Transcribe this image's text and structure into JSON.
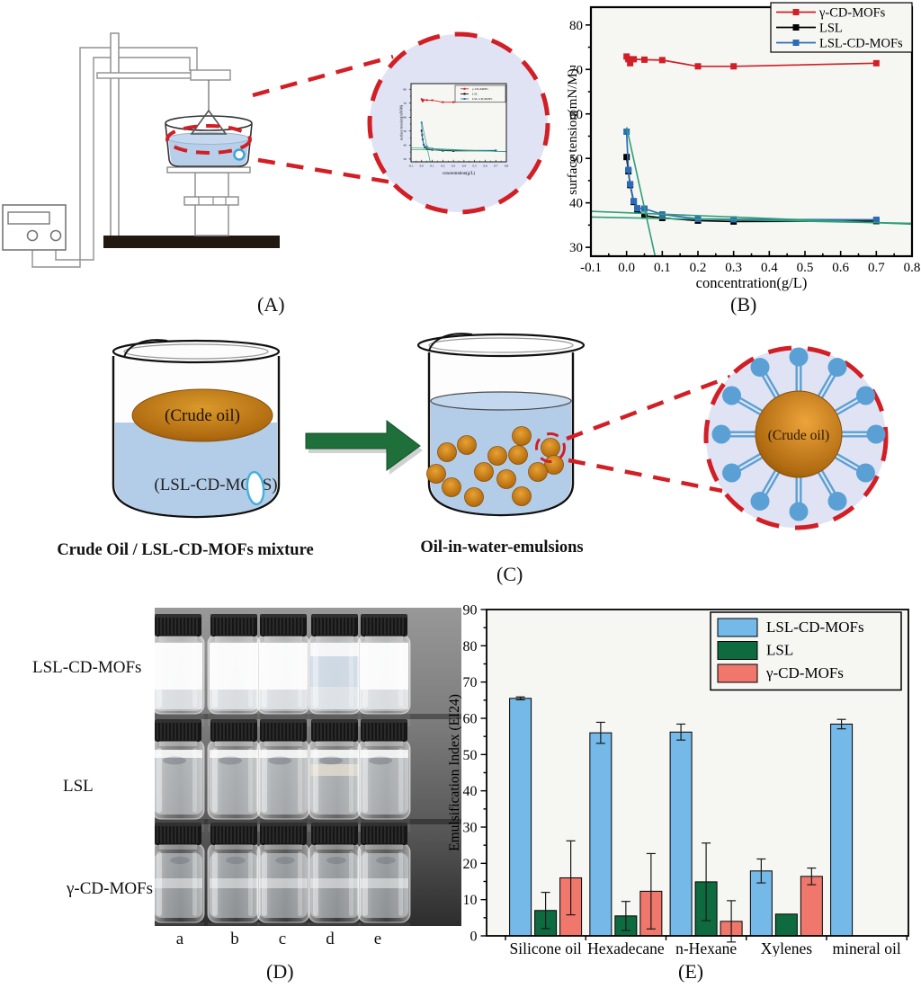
{
  "panel_labels": {
    "A": "(A)",
    "B": "(B)",
    "C": "(C)",
    "D": "(D)",
    "E": "(E)"
  },
  "panel_c": {
    "oil_label": "(Crude oil)",
    "mixture_label": "(LSL-CD-MOFS)",
    "beaker1_caption": "Crude Oil / LSL-CD-MOFs mixture",
    "beaker2_caption": "Oil-in-water-emulsions",
    "droplet_oil_label": "(Crude oil)"
  },
  "panel_d": {
    "row_labels": [
      "LSL-CD-MOFs",
      "LSL",
      "γ-CD-MOFs"
    ],
    "column_labels": [
      "a",
      "b",
      "c",
      "d",
      "e"
    ]
  },
  "chart_data": [
    {
      "id": "surface_tension",
      "type": "line",
      "title": "",
      "xlabel": "concentration(g/L)",
      "ylabel": "surface tension(mN/M)",
      "xlim": [
        -0.1,
        0.8
      ],
      "ylim": [
        28,
        84
      ],
      "xticks": [
        -0.1,
        0.0,
        0.1,
        0.2,
        0.3,
        0.4,
        0.5,
        0.6,
        0.7,
        0.8
      ],
      "yticks": [
        30,
        40,
        50,
        60,
        70,
        80
      ],
      "grid": false,
      "legend_position": "top-right",
      "series": [
        {
          "name": "γ-CD-MOFs",
          "color": "#d21f26",
          "x": [
            0.0,
            0.005,
            0.01,
            0.02,
            0.05,
            0.1,
            0.2,
            0.3,
            0.7
          ],
          "y": [
            72.9,
            72.3,
            71.4,
            72.3,
            72.2,
            72.1,
            70.7,
            70.7,
            71.4
          ]
        },
        {
          "name": "LSL",
          "color": "#000000",
          "x": [
            0.0,
            0.005,
            0.01,
            0.02,
            0.03,
            0.05,
            0.1,
            0.2,
            0.3,
            0.7
          ],
          "y": [
            50.3,
            47.1,
            44.0,
            40.2,
            38.4,
            37.1,
            36.6,
            36.0,
            35.8,
            35.9
          ]
        },
        {
          "name": "LSL-CD-MOFs",
          "color": "#2b6cb5",
          "x": [
            0.0,
            0.005,
            0.01,
            0.02,
            0.03,
            0.05,
            0.1,
            0.2,
            0.3,
            0.7
          ],
          "y": [
            56.0,
            47.4,
            44.2,
            40.4,
            38.8,
            38.7,
            37.4,
            36.4,
            36.3,
            36.2
          ]
        }
      ],
      "fit_lines": [
        {
          "x1": 0.0,
          "y1": 57.0,
          "x2": 0.08,
          "y2": 28.0,
          "color": "#2e9e78"
        },
        {
          "x1": -0.1,
          "y1": 38.1,
          "x2": 0.8,
          "y2": 35.2,
          "color": "#2e9e78"
        },
        {
          "x1": -0.1,
          "y1": 36.8,
          "x2": 0.8,
          "y2": 35.4,
          "color": "#2e9e78"
        }
      ]
    },
    {
      "id": "emulsification_index",
      "type": "bar",
      "title": "",
      "xlabel": "",
      "ylabel": "Emulsification Index (EI24)",
      "categories": [
        "Silicone oil",
        "Hexadecane",
        "n-Hexane",
        "Xylenes",
        "mineral oil"
      ],
      "ylim": [
        0,
        90
      ],
      "yticks": [
        0,
        10,
        20,
        30,
        40,
        50,
        60,
        70,
        80,
        90
      ],
      "grid": false,
      "legend_position": "top-right",
      "series": [
        {
          "name": "LSL-CD-MOFs",
          "color": "#74b9e8",
          "values": [
            65.5,
            56.0,
            56.2,
            17.9,
            58.4
          ],
          "errors": [
            0.4,
            2.9,
            2.2,
            3.3,
            1.3
          ]
        },
        {
          "name": "LSL",
          "color": "#0e6b3f",
          "values": [
            7.0,
            5.5,
            14.9,
            6.0,
            null
          ],
          "errors": [
            5.0,
            4.0,
            10.7,
            0,
            null
          ]
        },
        {
          "name": "γ-CD-MOFs",
          "color": "#f0776c",
          "values": [
            16.0,
            12.3,
            4.0,
            16.4,
            null
          ],
          "errors": [
            10.2,
            10.4,
            5.7,
            2.3,
            null
          ]
        }
      ]
    }
  ],
  "colors": {
    "red_accent": "#d21f26",
    "fit_line_green": "#2e9e78",
    "water_blue": "#b3cde9",
    "crude_oil_orange": "#b06a10",
    "surfactant_blue": "#5ba0d4",
    "inset_lavender": "#dfe3f4",
    "arrow_green": "#1e6f39",
    "plot_background": "#f6f6f3"
  }
}
